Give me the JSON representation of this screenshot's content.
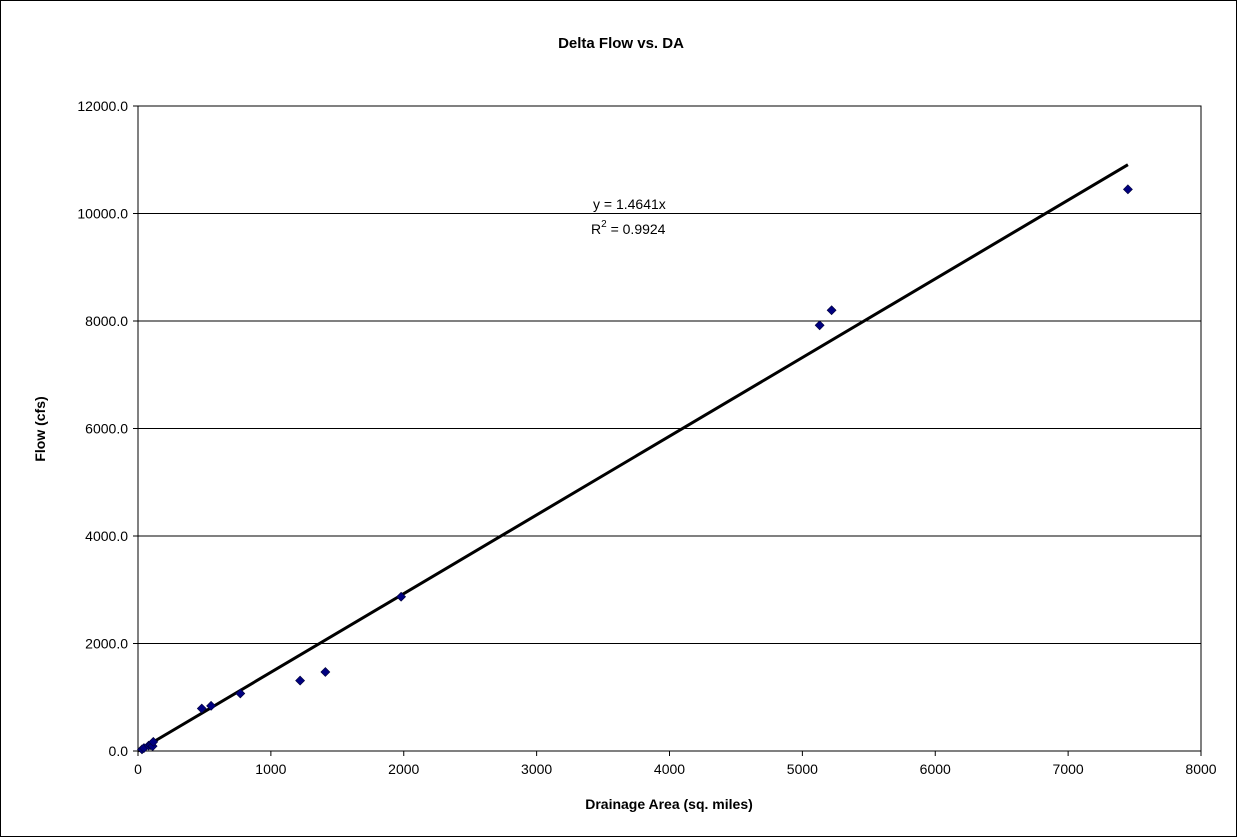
{
  "chart_data": {
    "type": "scatter",
    "title": "Delta Flow vs. DA",
    "xlabel": "Drainage Area (sq. miles)",
    "ylabel": "Flow (cfs)",
    "xlim": [
      0,
      8000
    ],
    "ylim": [
      0,
      12000
    ],
    "x_ticks": [
      "0",
      "1000",
      "2000",
      "3000",
      "4000",
      "5000",
      "6000",
      "7000",
      "8000"
    ],
    "y_ticks": [
      "0.0",
      "2000.0",
      "4000.0",
      "6000.0",
      "8000.0",
      "10000.0",
      "12000.0"
    ],
    "grid": "horizontal",
    "marker_color": "#000080",
    "trendline": {
      "slope": 1.4641,
      "x_range": [
        0,
        7450
      ],
      "color": "#000000",
      "equation": "y = 1.4641x",
      "r2_base": "R",
      "r2_sup": "2",
      "r2_value": " = 0.9924"
    },
    "points": [
      {
        "x": 30,
        "y": 30
      },
      {
        "x": 45,
        "y": 55
      },
      {
        "x": 80,
        "y": 100
      },
      {
        "x": 95,
        "y": 110
      },
      {
        "x": 110,
        "y": 90
      },
      {
        "x": 115,
        "y": 170
      },
      {
        "x": 480,
        "y": 790
      },
      {
        "x": 550,
        "y": 840
      },
      {
        "x": 770,
        "y": 1070
      },
      {
        "x": 1220,
        "y": 1310
      },
      {
        "x": 1410,
        "y": 1470
      },
      {
        "x": 1980,
        "y": 2870
      },
      {
        "x": 5130,
        "y": 7920
      },
      {
        "x": 5220,
        "y": 8200
      },
      {
        "x": 7450,
        "y": 10450
      }
    ]
  }
}
